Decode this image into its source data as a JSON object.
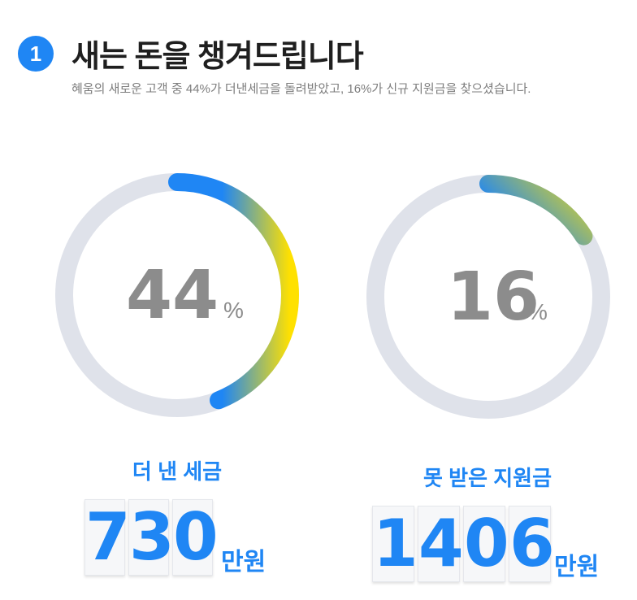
{
  "header": {
    "step_number": "1",
    "title": "새는 돈을 챙겨드립니다",
    "subtitle": "혜움의 새로운 고객 중 44%가 더낸세금을 돌려받았고, 16%가 신규 지원금을 찾으셨습니다."
  },
  "stats": [
    {
      "percent": 44,
      "percent_label": "44",
      "percent_sign": "%",
      "caption": "더 낸 세금",
      "amount_digits": [
        "7",
        "3",
        "0"
      ],
      "unit": "만원"
    },
    {
      "percent": 16,
      "percent_label": "16",
      "percent_sign": "%",
      "caption": "못 받은 지원금",
      "amount_digits": [
        "1",
        "4",
        "0",
        "6"
      ],
      "unit": "만원"
    }
  ],
  "colors": {
    "accent": "#1f86f4",
    "ring_track": "#dfe2ea",
    "gradient_start": "#ffe100",
    "gradient_end": "#1f86f4",
    "number_gray": "#8c8c8c"
  }
}
